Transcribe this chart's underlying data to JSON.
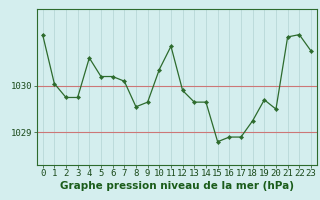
{
  "x": [
    0,
    1,
    2,
    3,
    4,
    5,
    6,
    7,
    8,
    9,
    10,
    11,
    12,
    13,
    14,
    15,
    16,
    17,
    18,
    19,
    20,
    21,
    22,
    23
  ],
  "y": [
    1031.1,
    1030.05,
    1029.75,
    1029.75,
    1030.6,
    1030.2,
    1030.2,
    1030.1,
    1029.55,
    1029.65,
    1030.35,
    1030.85,
    1029.9,
    1029.65,
    1029.65,
    1028.8,
    1028.9,
    1028.9,
    1029.25,
    1029.7,
    1029.5,
    1031.05,
    1031.1,
    1030.75
  ],
  "line_color": "#2d6b2d",
  "marker_color": "#2d6b2d",
  "bg_color": "#d4eeee",
  "grid_color": "#b8d8d8",
  "hline_color": "#cc7777",
  "hline_y1": 1030.0,
  "hline_y2": 1029.0,
  "ylabel_values": [
    1030,
    1029
  ],
  "xlabel_label": "Graphe pression niveau de la mer (hPa)",
  "xlim": [
    -0.5,
    23.5
  ],
  "ylim": [
    1028.3,
    1031.65
  ],
  "axis_fontsize": 6.5,
  "label_fontsize": 7.5,
  "border_color": "#2d6b2d"
}
